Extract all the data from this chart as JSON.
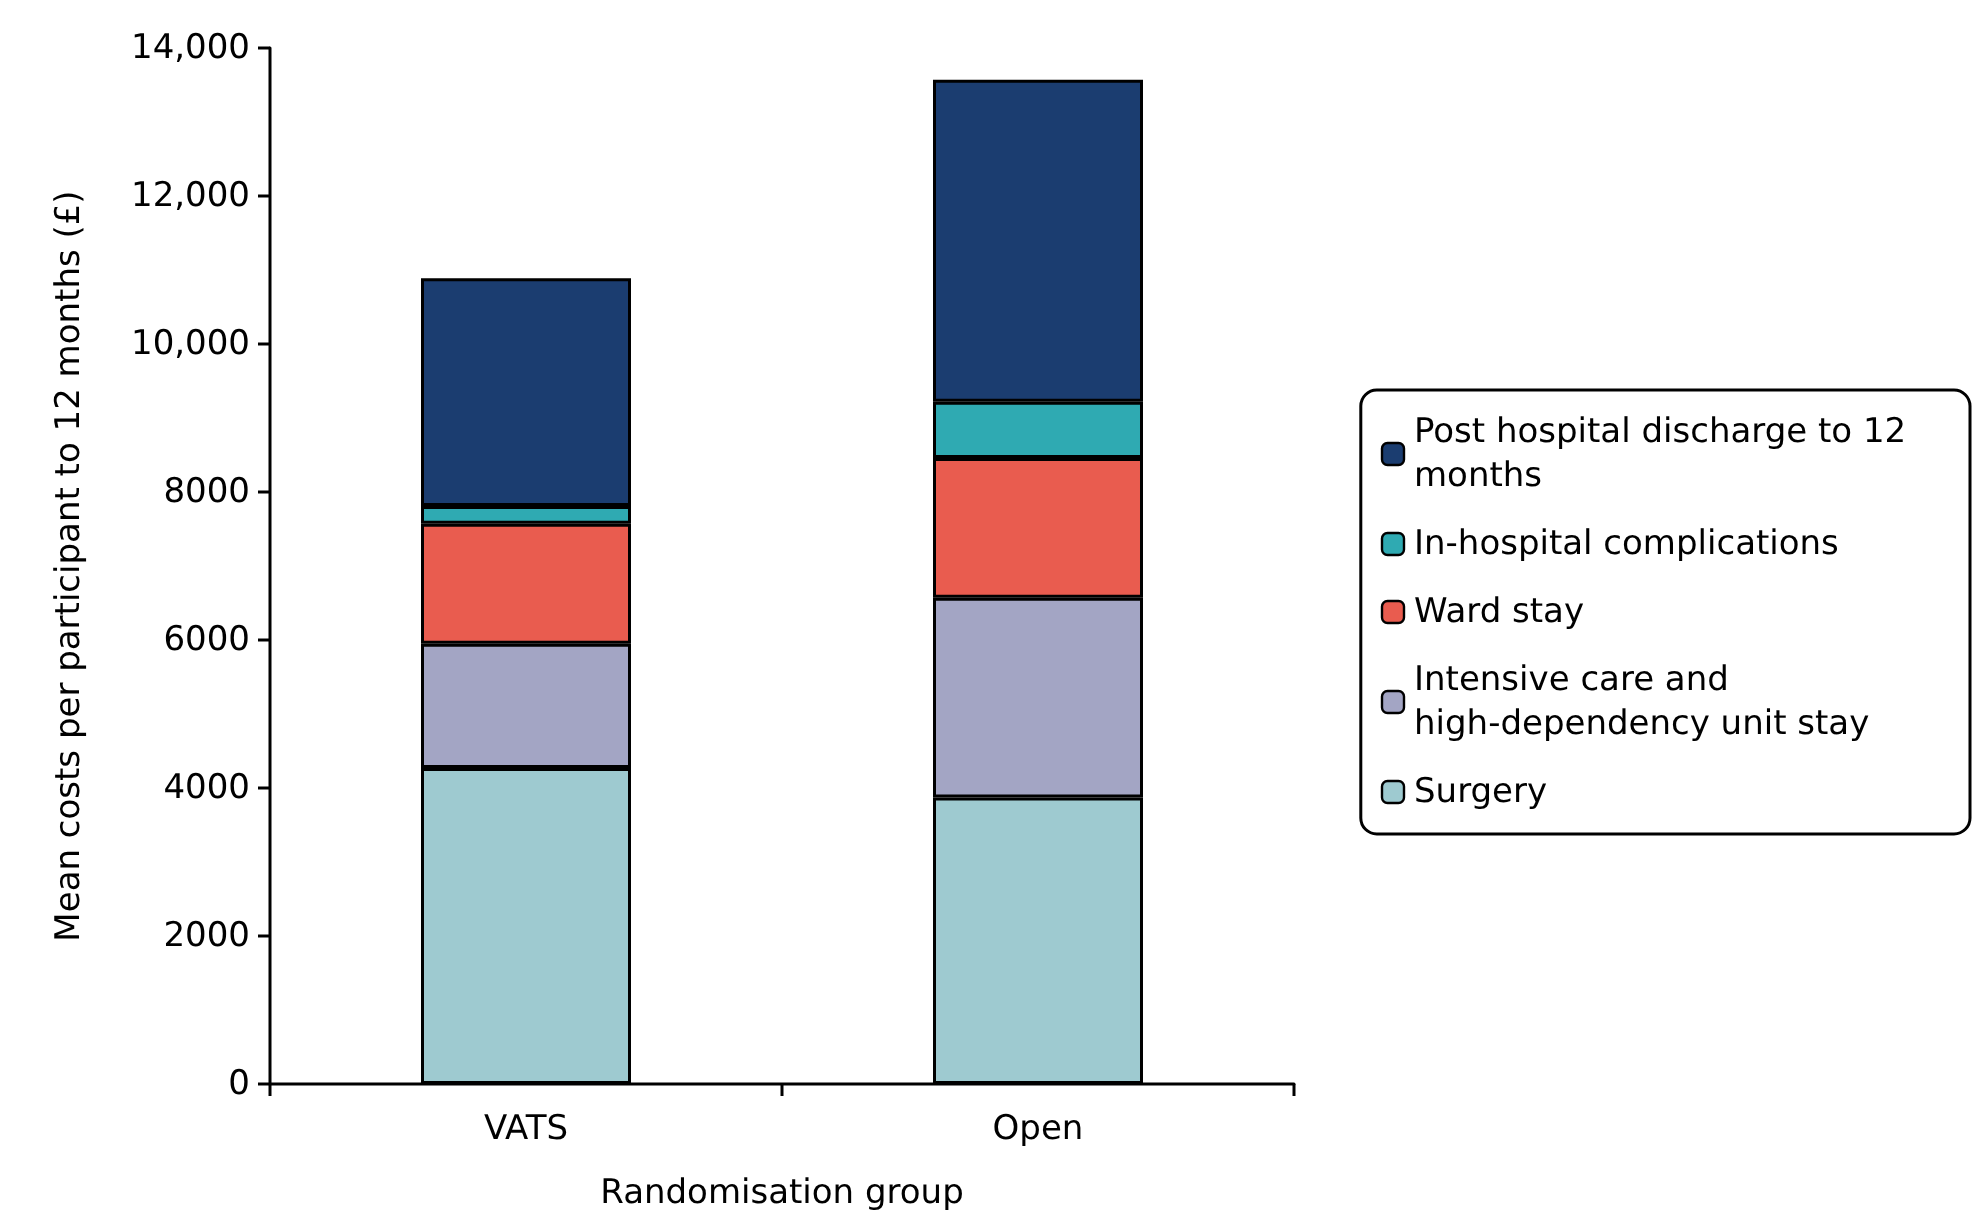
{
  "chart_data": {
    "type": "bar",
    "stacked": true,
    "xlabel": "Randomisation group",
    "ylabel": "Mean costs per participant to 12 months (£)",
    "categories": [
      "VATS",
      "Open"
    ],
    "series": [
      {
        "name": "Surgery",
        "color": "#9ecad0",
        "values": [
          4270,
          3870
        ]
      },
      {
        "name": "Intensive care and high-dependency unit stay",
        "color": "#a3a5c4",
        "values": [
          1680,
          2700
        ]
      },
      {
        "name": "Ward stay",
        "color": "#e95c4f",
        "values": [
          1620,
          1890
        ]
      },
      {
        "name": "In-hospital complications",
        "color": "#2faab2",
        "values": [
          240,
          760
        ]
      },
      {
        "name": "Post hospital discharge to 12 months",
        "color": "#1b3d70",
        "values": [
          3080,
          4350
        ]
      }
    ],
    "ylim": [
      0,
      14000
    ],
    "yticks": [
      0,
      2000,
      4000,
      6000,
      8000,
      {
        "value": 10000,
        "label": "10,000"
      },
      {
        "value": 12000,
        "label": "12,000"
      },
      {
        "value": 14000,
        "label": "14,000"
      }
    ],
    "grid": false,
    "legend": "right"
  }
}
